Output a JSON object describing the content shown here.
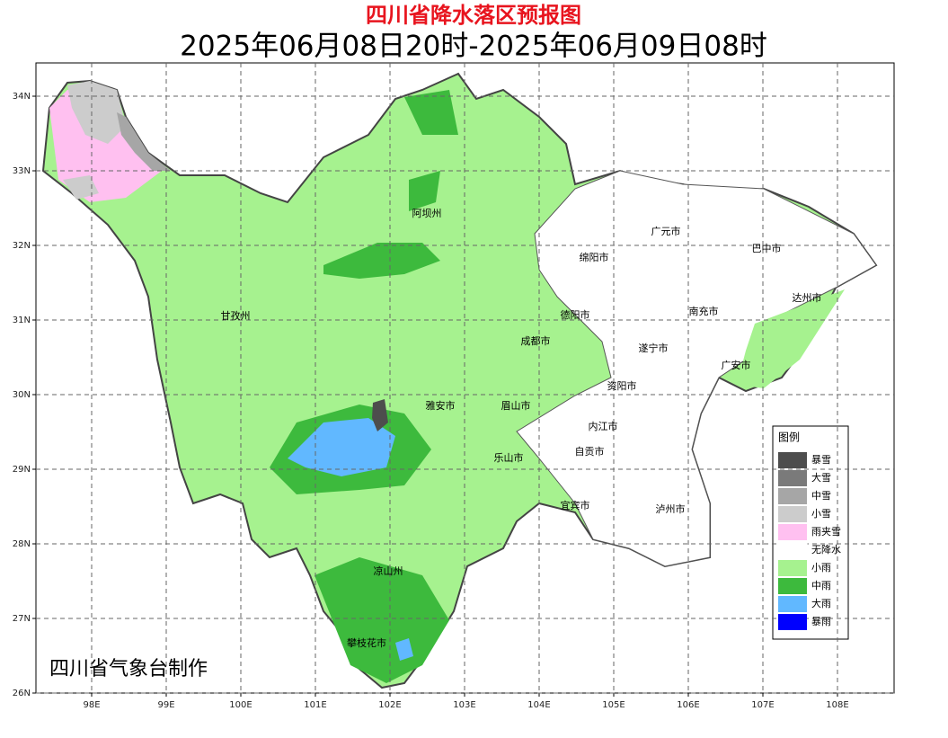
{
  "header": {
    "title": "四川省降水落区预报图",
    "subtitle": "2025年06月08日20时-2025年06月09日08时"
  },
  "map": {
    "xlim": [
      97.253,
      108.759
    ],
    "ylim": [
      26,
      34.446
    ],
    "xticks": [
      {
        "value": 98,
        "label": "98E"
      },
      {
        "value": 99,
        "label": "99E"
      },
      {
        "value": 100,
        "label": "100E"
      },
      {
        "value": 101,
        "label": "101E"
      },
      {
        "value": 102,
        "label": "102E"
      },
      {
        "value": 103,
        "label": "103E"
      },
      {
        "value": 104,
        "label": "104E"
      },
      {
        "value": 105,
        "label": "105E"
      },
      {
        "value": 106,
        "label": "106E"
      },
      {
        "value": 107,
        "label": "107E"
      },
      {
        "value": 108,
        "label": "108E"
      }
    ],
    "yticks": [
      {
        "value": 26,
        "label": "26N"
      },
      {
        "value": 27,
        "label": "27N"
      },
      {
        "value": 28,
        "label": "28N"
      },
      {
        "value": 29,
        "label": "29N"
      },
      {
        "value": 30,
        "label": "30N"
      },
      {
        "value": 31,
        "label": "31N"
      },
      {
        "value": 32,
        "label": "32N"
      },
      {
        "value": 33,
        "label": "33N"
      },
      {
        "value": 34,
        "label": "34N"
      }
    ],
    "cities": [
      "阿坝州",
      "甘孜州",
      "绵阳市",
      "广元市",
      "巴中市",
      "达州市",
      "德阳市",
      "南充市",
      "成都市",
      "遂宁市",
      "广安市",
      "资阳市",
      "雅安市",
      "眉山市",
      "内江市",
      "自贡市",
      "乐山市",
      "宜宾市",
      "泸州市",
      "凉山州",
      "攀枝花市"
    ],
    "credit": "四川省气象台制作"
  },
  "legend": {
    "title": "图例",
    "items": [
      {
        "label": "暴雪",
        "color": "#4d4d4d"
      },
      {
        "label": "大雪",
        "color": "#7a7a7a"
      },
      {
        "label": "中雪",
        "color": "#a6a6a6"
      },
      {
        "label": "小雪",
        "color": "#cccccc"
      },
      {
        "label": "雨夹雪",
        "color": "#ffc0f0"
      },
      {
        "label": "无降水",
        "color": "#ffffff"
      },
      {
        "label": "小雨",
        "color": "#a6f28f"
      },
      {
        "label": "中雨",
        "color": "#3dba3d"
      },
      {
        "label": "大雨",
        "color": "#61b8ff"
      },
      {
        "label": "暴雨",
        "color": "#0000fe"
      }
    ]
  }
}
